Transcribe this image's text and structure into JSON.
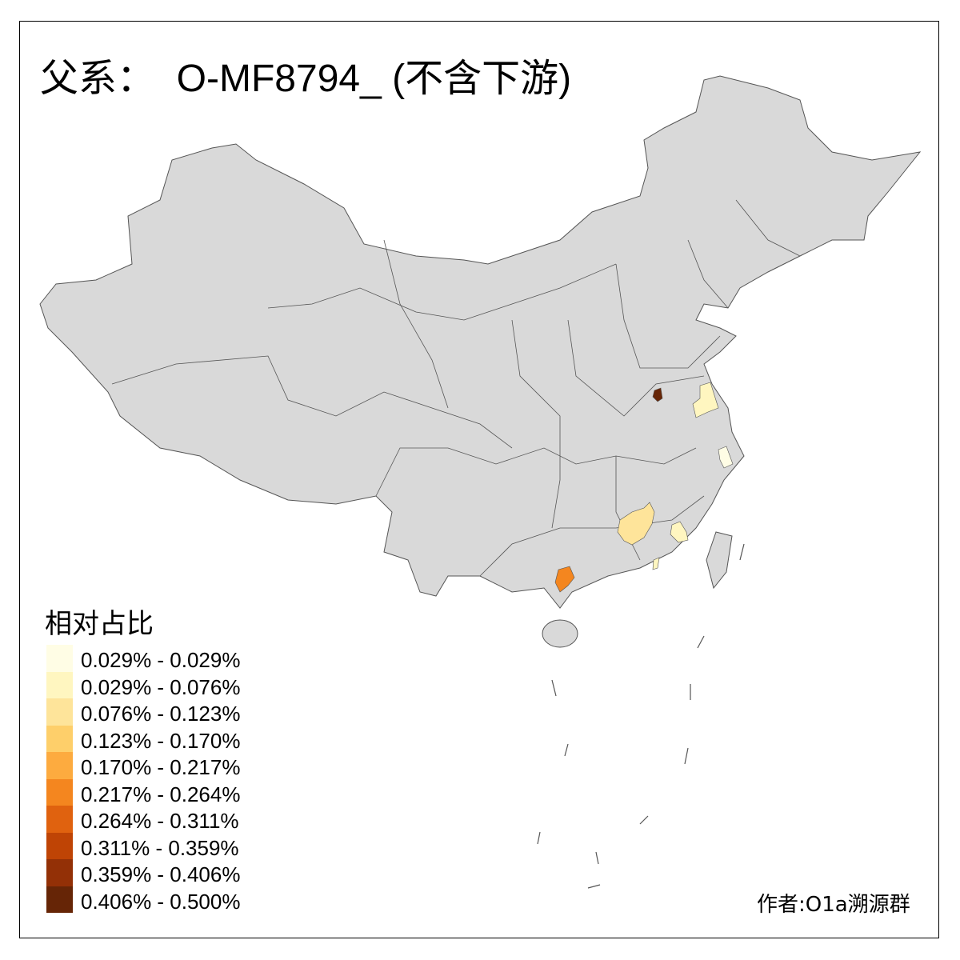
{
  "title": "父系：  O-MF8794_ (不含下游)",
  "legend": {
    "title": "相对占比",
    "items": [
      {
        "label": "0.029% - 0.029%",
        "color": "#FFFDE5"
      },
      {
        "label": "0.029% - 0.076%",
        "color": "#FFF6C0"
      },
      {
        "label": "0.076% - 0.123%",
        "color": "#FEE49A"
      },
      {
        "label": "0.123% - 0.170%",
        "color": "#FECF6A"
      },
      {
        "label": "0.170% - 0.217%",
        "color": "#FDAB3F"
      },
      {
        "label": "0.217% - 0.264%",
        "color": "#F4861F"
      },
      {
        "label": "0.264% - 0.311%",
        "color": "#E0620F"
      },
      {
        "label": "0.311% - 0.359%",
        "color": "#BF4405"
      },
      {
        "label": "0.359% - 0.406%",
        "color": "#933006"
      },
      {
        "label": "0.406% - 0.500%",
        "color": "#662506"
      }
    ]
  },
  "map": {
    "base_color": "#D9D9D9",
    "border_color": "#555555",
    "highlighted_regions": [
      {
        "class": 9,
        "color": "#662506"
      },
      {
        "class": 1,
        "color": "#FFF6C0"
      },
      {
        "class": 0,
        "color": "#FFFDE5"
      },
      {
        "class": 2,
        "color": "#FEE49A"
      },
      {
        "class": 1,
        "color": "#FFF6C0"
      },
      {
        "class": 1,
        "color": "#FFF6C0"
      },
      {
        "class": 5,
        "color": "#F4861F"
      }
    ]
  },
  "author": "作者:O1a溯源群"
}
